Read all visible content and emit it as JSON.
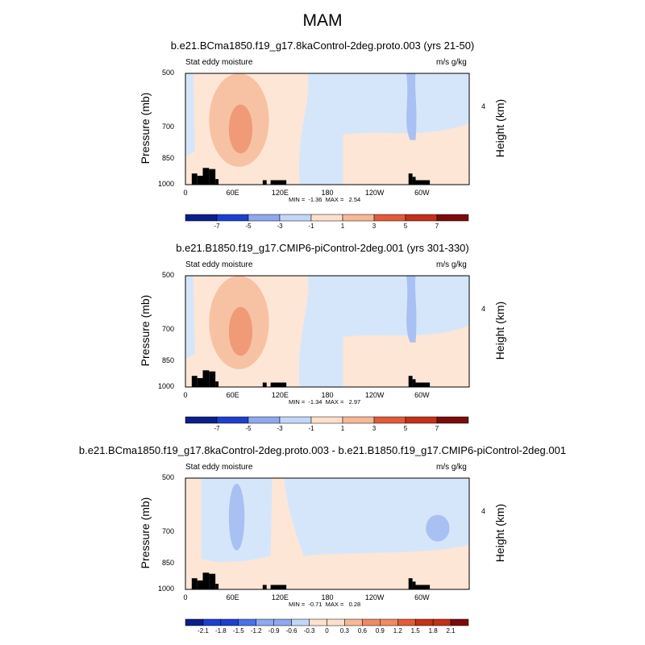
{
  "main_title": "MAM",
  "chart_data": [
    {
      "type": "heatmap",
      "title": "b.e21.BCma1850.f19_g17.8kaControl-2deg.proto.003 (yrs 21-50)",
      "left_label": "Stat eddy moisture",
      "right_label": "m/s g/kg",
      "ylabel": "Pressure (mb)",
      "ylabel_right": "Height (km)",
      "x_ticks": [
        "0",
        "60E",
        "120E",
        "180",
        "120W",
        "60W"
      ],
      "y_ticks": [
        "500",
        "700",
        "850",
        "1000"
      ],
      "right_ticks": [
        "4"
      ],
      "minmax_text": "MIN =  -1.36  MAX =   2.54",
      "min": -1.36,
      "max": 2.54,
      "colorbar_labels": [
        "-7",
        "-5",
        "-3",
        "-1",
        "1",
        "3",
        "5",
        "7"
      ]
    },
    {
      "type": "heatmap",
      "title": "b.e21.B1850.f19_g17.CMIP6-piControl-2deg.001 (yrs 301-330)",
      "left_label": "Stat eddy moisture",
      "right_label": "m/s g/kg",
      "ylabel": "Pressure (mb)",
      "ylabel_right": "Height (km)",
      "x_ticks": [
        "0",
        "60E",
        "120E",
        "180",
        "120W",
        "60W"
      ],
      "y_ticks": [
        "500",
        "700",
        "850",
        "1000"
      ],
      "right_ticks": [
        "4"
      ],
      "minmax_text": "MIN =  -1.34  MAX =   2.97",
      "min": -1.34,
      "max": 2.97,
      "colorbar_labels": [
        "-7",
        "-5",
        "-3",
        "-1",
        "1",
        "3",
        "5",
        "7"
      ]
    },
    {
      "type": "heatmap",
      "title": "b.e21.BCma1850.f19_g17.8kaControl-2deg.proto.003 - b.e21.B1850.f19_g17.CMIP6-piControl-2deg.001",
      "left_label": "Stat eddy moisture",
      "right_label": "m/s g/kg",
      "ylabel": "Pressure (mb)",
      "ylabel_right": "Height (km)",
      "x_ticks": [
        "0",
        "60E",
        "120E",
        "180",
        "120W",
        "60W"
      ],
      "y_ticks": [
        "500",
        "700",
        "850",
        "1000"
      ],
      "right_ticks": [
        "4"
      ],
      "minmax_text": "MIN =  -0.71  MAX =   0.28",
      "min": -0.71,
      "max": 0.28,
      "colorbar_labels": [
        "-2.1",
        "-1.8",
        "-1.5",
        "-1.2",
        "-0.9",
        "-0.6",
        "-0.3",
        "0",
        "0.3",
        "0.6",
        "0.9",
        "1.2",
        "1.5",
        "1.8",
        "2.1"
      ]
    }
  ],
  "colors": {
    "cb_div8": [
      "#0a1e8c",
      "#1d3fcf",
      "#4a72e6",
      "#8ea9f0",
      "#c4d6f8",
      "#fce0cc",
      "#f6b896",
      "#ef8a64",
      "#e25a38",
      "#c43018",
      "#7d0a0a"
    ],
    "pale_blue": "#d6e6fa",
    "pale_peach": "#fde6d6",
    "mid_blue": "#a9c0f2",
    "light_salmon": "#f7c2a4",
    "salmon": "#f09a78"
  }
}
